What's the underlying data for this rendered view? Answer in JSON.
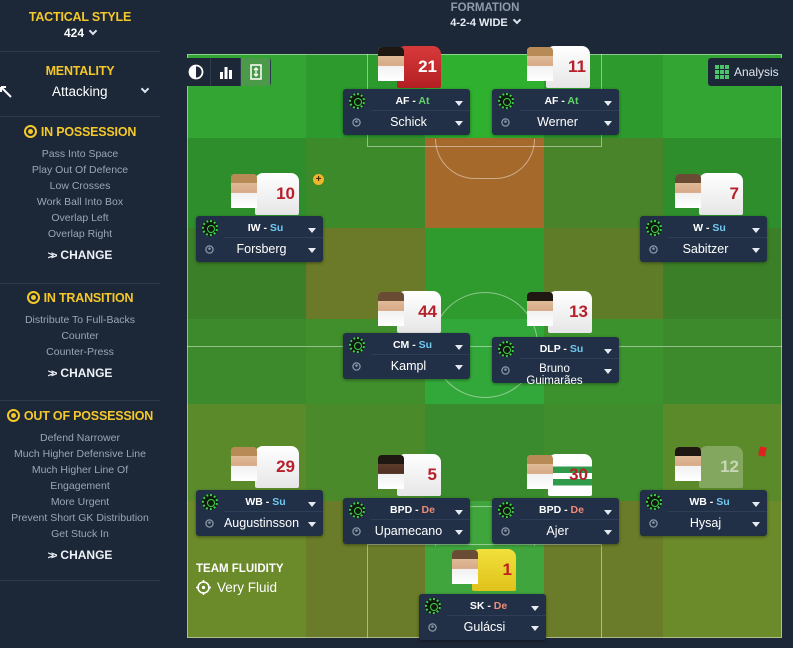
{
  "left_panel": {
    "tactical_style": {
      "title": "TACTICAL STYLE",
      "value": "424"
    },
    "mentality": {
      "title": "MENTALITY",
      "value": "Attacking"
    },
    "in_possession": {
      "title": "IN POSSESSION",
      "items": [
        "Pass Into Space",
        "Play Out Of Defence",
        "Low Crosses",
        "Work Ball Into Box",
        "Overlap Left",
        "Overlap Right"
      ],
      "change_label": "CHANGE"
    },
    "in_transition": {
      "title": "IN TRANSITION",
      "items": [
        "Distribute To Full-Backs",
        "Counter",
        "Counter-Press"
      ],
      "change_label": "CHANGE"
    },
    "out_of_possession": {
      "title": "OUT OF POSSESSION",
      "items": [
        "Defend Narrower",
        "Much Higher Defensive Line",
        "Much Higher Line Of",
        "Engagement",
        "More Urgent",
        "Prevent Short GK Distribution",
        "Get Stuck In"
      ],
      "change_label": "CHANGE"
    }
  },
  "formation": {
    "title": "FORMATION",
    "value": "4-2-4 WIDE"
  },
  "toolbar": {
    "analysis_label": "Analysis"
  },
  "team_fluidity": {
    "title": "TEAM FLUIDITY",
    "value": "Very Fluid"
  },
  "players": [
    {
      "id": "schick",
      "role": "AF",
      "duty": "At",
      "name": "Schick",
      "number": "21"
    },
    {
      "id": "werner",
      "role": "AF",
      "duty": "At",
      "name": "Werner",
      "number": "11"
    },
    {
      "id": "forsberg",
      "role": "IW",
      "duty": "Su",
      "name": "Forsberg",
      "number": "10"
    },
    {
      "id": "sabitzer",
      "role": "W",
      "duty": "Su",
      "name": "Sabitzer",
      "number": "7"
    },
    {
      "id": "kampl",
      "role": "CM",
      "duty": "Su",
      "name": "Kampl",
      "number": "44"
    },
    {
      "id": "guimaraes",
      "role": "DLP",
      "duty": "Su",
      "name": "Bruno Guimarães",
      "number": "13"
    },
    {
      "id": "augustinsson",
      "role": "WB",
      "duty": "Su",
      "name": "Augustinsson",
      "number": "29"
    },
    {
      "id": "upamecano",
      "role": "BPD",
      "duty": "De",
      "name": "Upamecano",
      "number": "5"
    },
    {
      "id": "ajer",
      "role": "BPD",
      "duty": "De",
      "name": "Ajer",
      "number": "30"
    },
    {
      "id": "hysaj",
      "role": "WB",
      "duty": "Su",
      "name": "Hysaj",
      "number": "12"
    },
    {
      "id": "gulacsi",
      "role": "SK",
      "duty": "De",
      "name": "Gulácsi",
      "number": "1"
    }
  ],
  "colors": {
    "accent_yellow": "#f5c82a",
    "panel_bg": "#1c2737",
    "card_bg": "#223047",
    "duty_attack": "#60d66a",
    "duty_support": "#6fc9f0",
    "duty_defend": "#f08b78"
  }
}
